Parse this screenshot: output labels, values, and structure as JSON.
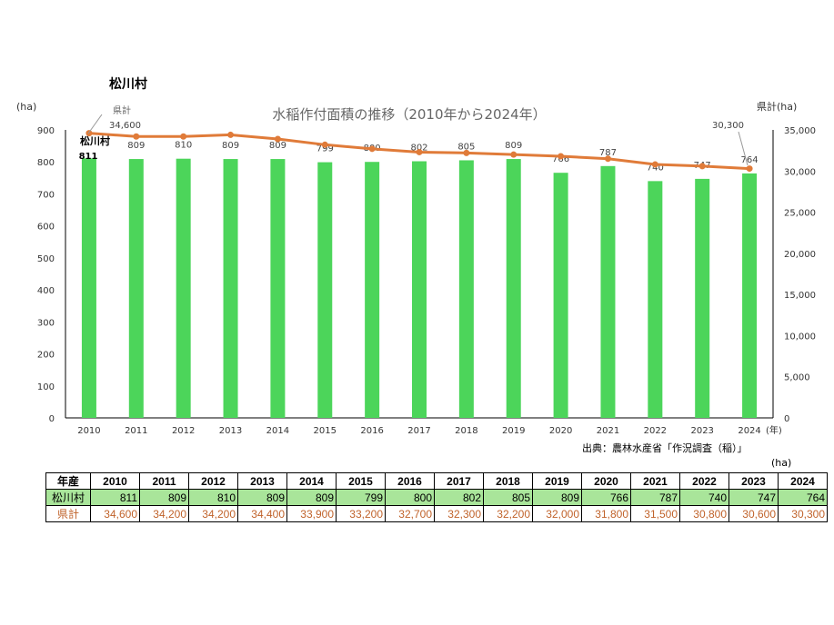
{
  "page_title": "松川村",
  "unit_label": "(ha)",
  "source": "出典：農林水産省「作況調査（稲）」",
  "chart_data": {
    "type": "bar+line",
    "title": "水稲作付面積の推移（2010年から2024年）",
    "categories": [
      "2010",
      "2011",
      "2012",
      "2013",
      "2014",
      "2015",
      "2016",
      "2017",
      "2018",
      "2019",
      "2020",
      "2021",
      "2022",
      "2023",
      "2024"
    ],
    "x_unit": "(年)",
    "series": [
      {
        "name": "松川村",
        "type": "bar",
        "axis": "left",
        "color": "#4cd55a",
        "values": [
          811,
          809,
          810,
          809,
          809,
          799,
          800,
          802,
          805,
          809,
          766,
          787,
          740,
          747,
          764
        ]
      },
      {
        "name": "県計",
        "type": "line",
        "axis": "right",
        "color": "#e07b39",
        "values": [
          34600,
          34200,
          34200,
          34400,
          33900,
          33200,
          32700,
          32300,
          32200,
          32000,
          31800,
          31500,
          30800,
          30600,
          30300
        ]
      }
    ],
    "ylabel_left": "(ha)",
    "ylim_left": [
      0,
      900
    ],
    "yticks_left": [
      "0",
      "100",
      "200",
      "300",
      "400",
      "500",
      "600",
      "700",
      "800",
      "900"
    ],
    "ylabel_right": "県計(ha)",
    "ylim_right": [
      0,
      35000
    ],
    "yticks_right": [
      "0",
      "5,000",
      "10,000",
      "15,000",
      "20,000",
      "25,000",
      "30,000",
      "35,000"
    ],
    "line_labels": {
      "first": "34,600",
      "last": "30,300",
      "series_label": "県計"
    }
  },
  "table": {
    "header": "年産",
    "years": [
      "2010",
      "2011",
      "2012",
      "2013",
      "2014",
      "2015",
      "2016",
      "2017",
      "2018",
      "2019",
      "2020",
      "2021",
      "2022",
      "2023",
      "2024"
    ],
    "rows": [
      {
        "label": "松川村",
        "values": [
          "811",
          "809",
          "810",
          "809",
          "809",
          "799",
          "800",
          "802",
          "805",
          "809",
          "766",
          "787",
          "740",
          "747",
          "764"
        ]
      },
      {
        "label": "県計",
        "values": [
          "34,600",
          "34,200",
          "34,200",
          "34,400",
          "33,900",
          "33,200",
          "32,700",
          "32,300",
          "32,200",
          "32,000",
          "31,800",
          "31,500",
          "30,800",
          "30,600",
          "30,300"
        ]
      }
    ]
  }
}
